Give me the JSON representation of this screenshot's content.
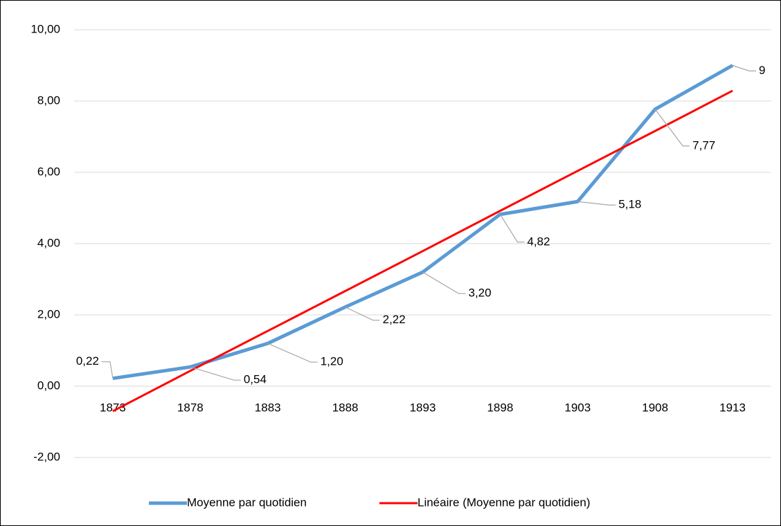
{
  "chart_data": {
    "type": "line",
    "categories": [
      "1873",
      "1878",
      "1883",
      "1888",
      "1893",
      "1898",
      "1903",
      "1908",
      "1913"
    ],
    "series": [
      {
        "name": "Moyenne par quotidien",
        "color": "#5b9bd5",
        "values": [
          0.22,
          0.54,
          1.2,
          2.22,
          3.2,
          4.82,
          5.18,
          7.77,
          9
        ],
        "value_labels": [
          "0,22",
          "0,54",
          "1,20",
          "2,22",
          "3,20",
          "4,82",
          "5,18",
          "7,77",
          "9"
        ]
      },
      {
        "name": "Linéaire (Moyenne par quotidien)",
        "color": "#ff0000",
        "values": [
          -0.7,
          0.43,
          1.55,
          2.67,
          3.79,
          4.92,
          6.04,
          7.16,
          8.29
        ]
      }
    ],
    "ylim": [
      -2,
      10
    ],
    "yticks": [
      {
        "value": -2,
        "label": "-2,00"
      },
      {
        "value": 0,
        "label": "0,00"
      },
      {
        "value": 2,
        "label": "2,00"
      },
      {
        "value": 4,
        "label": "4,00"
      },
      {
        "value": 6,
        "label": "6,00"
      },
      {
        "value": 8,
        "label": "8,00"
      },
      {
        "value": 10,
        "label": "10,00"
      }
    ],
    "grid": true,
    "legend": "bottom"
  }
}
